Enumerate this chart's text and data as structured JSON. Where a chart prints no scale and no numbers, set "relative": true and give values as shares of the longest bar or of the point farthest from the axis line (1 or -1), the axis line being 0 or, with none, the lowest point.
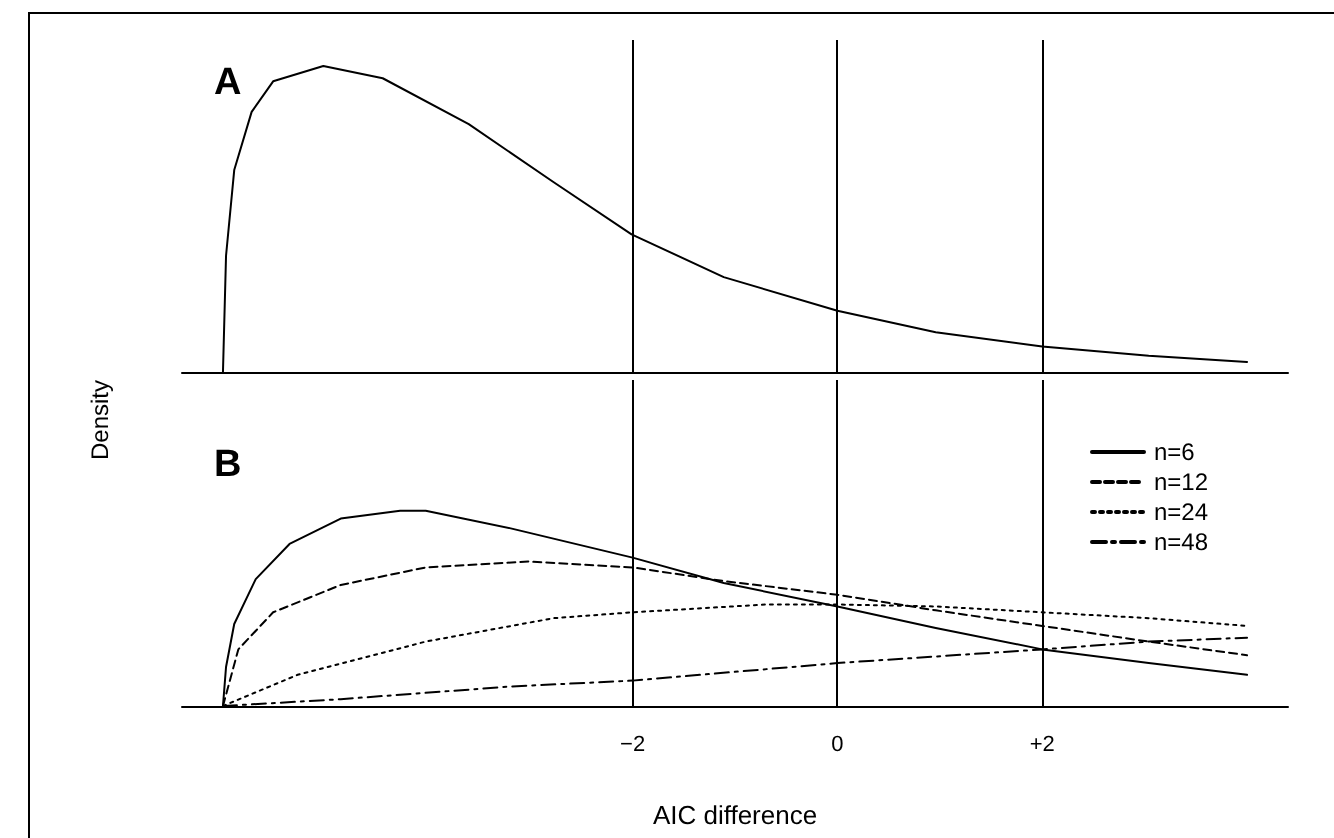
{
  "chart_data": [
    {
      "type": "line",
      "title": "A",
      "ylabel": "Density",
      "relative": true,
      "xlim": [
        -6.4,
        4.4
      ],
      "xticks": [
        {
          "value": -2,
          "label": null
        },
        {
          "value": 0,
          "label": null
        },
        {
          "value": 2,
          "label": null
        }
      ],
      "tick_labels": false,
      "grid": "x",
      "legend": false,
      "marker": "none",
      "series": [
        {
          "color": "#000000",
          "line_style": "solid",
          "x": [
            -6.0,
            -5.97,
            -5.89,
            -5.72,
            -5.51,
            -5.02,
            -4.44,
            -3.6,
            -2.77,
            -2.01,
            -1.11,
            0,
            0.96,
            2,
            3.04,
            4.0
          ],
          "values": [
            0,
            0.38,
            0.66,
            0.85,
            0.95,
            1.0,
            0.96,
            0.81,
            0.62,
            0.45,
            0.31,
            0.2,
            0.13,
            0.083,
            0.053,
            0.033
          ]
        }
      ]
    },
    {
      "type": "line",
      "title": "B",
      "xlabel": "AIC difference",
      "relative": true,
      "xlim": [
        -6.4,
        4.4
      ],
      "xticks": [
        {
          "value": -2,
          "label": "−2"
        },
        0,
        {
          "value": 2,
          "label": "+2"
        }
      ],
      "tick_labels": "x",
      "grid": "x",
      "legend": "top right",
      "marker": "none",
      "series": [
        {
          "name": "n=6",
          "color": "#000000",
          "line_style": "solid",
          "x": [
            -6.0,
            -5.97,
            -5.89,
            -5.68,
            -5.35,
            -4.85,
            -4.27,
            -4.02,
            -3.19,
            -2.0,
            -1.11,
            0,
            0.96,
            2.0,
            3.04,
            4.0
          ],
          "values": [
            0,
            0.2,
            0.42,
            0.65,
            0.83,
            0.96,
            1.0,
            1.0,
            0.91,
            0.76,
            0.63,
            0.51,
            0.4,
            0.29,
            0.22,
            0.16
          ]
        },
        {
          "name": "n=12",
          "color": "#000000",
          "line_style": "dashed",
          "x": [
            -6.0,
            -5.85,
            -5.51,
            -4.85,
            -4.02,
            -3.02,
            -2.0,
            -1.11,
            0,
            0.96,
            2.0,
            3.04,
            4.0
          ],
          "values": [
            0,
            0.29,
            0.48,
            0.62,
            0.71,
            0.74,
            0.71,
            0.64,
            0.57,
            0.49,
            0.41,
            0.33,
            0.26
          ]
        },
        {
          "name": "n=24",
          "color": "#000000",
          "line_style": "dotted",
          "x": [
            -6.0,
            -5.27,
            -4.02,
            -2.77,
            -2.0,
            -0.7,
            0,
            0.96,
            2.0,
            3.04,
            4.0
          ],
          "values": [
            0,
            0.16,
            0.33,
            0.45,
            0.48,
            0.52,
            0.52,
            0.51,
            0.48,
            0.45,
            0.41
          ]
        },
        {
          "name": "n=48",
          "color": "#000000",
          "line_style": "dashdot",
          "x": [
            -6.0,
            -4.85,
            -3.19,
            -2.0,
            0,
            2.0,
            3.04,
            4.0
          ],
          "values": [
            0,
            0.035,
            0.1,
            0.13,
            0.22,
            0.29,
            0.33,
            0.35
          ]
        }
      ]
    }
  ]
}
